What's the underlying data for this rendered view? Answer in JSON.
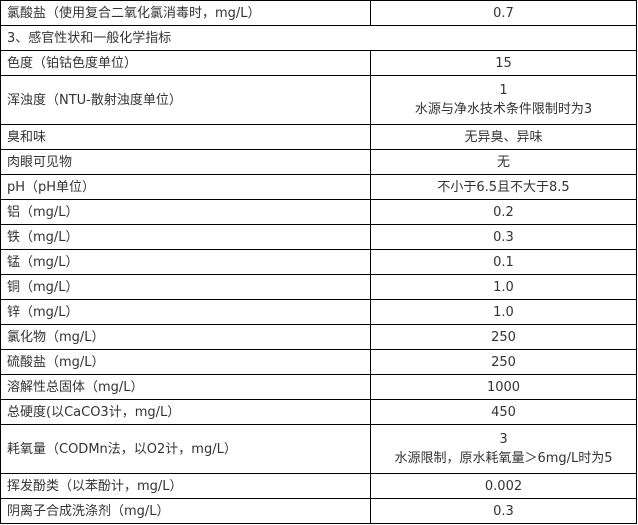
{
  "rows": [
    {
      "name": "氯酸盐（使用复合二氧化氯消毒时，mg/L）",
      "value": "0.7"
    },
    {
      "section": "3、感官性状和一般化学指标"
    },
    {
      "name": "色度（铂钴色度单位）",
      "value": "15"
    },
    {
      "name": "浑浊度（NTU-散射浊度单位）",
      "value": "1",
      "note": "水源与净水技术条件限制时为3"
    },
    {
      "name": "臭和味",
      "value": "无异臭、异味"
    },
    {
      "name": "肉眼可见物",
      "value": "无"
    },
    {
      "name": "pH（pH单位）",
      "value": "不小于6.5且不大于8.5"
    },
    {
      "name": "铝（mg/L）",
      "value": "0.2"
    },
    {
      "name": "铁（mg/L）",
      "value": "0.3"
    },
    {
      "name": "锰（mg/L）",
      "value": "0.1"
    },
    {
      "name": "铜（mg/L）",
      "value": "1.0"
    },
    {
      "name": "锌（mg/L）",
      "value": "1.0"
    },
    {
      "name": "氯化物（mg/L）",
      "value": "250"
    },
    {
      "name": "硫酸盐（mg/L）",
      "value": "250"
    },
    {
      "name": "溶解性总固体（mg/L）",
      "value": "1000"
    },
    {
      "name": "总硬度(以CaCO3计，mg/L）",
      "value": "450"
    },
    {
      "name": "耗氧量（CODMn法，以O2计，mg/L）",
      "value": "3",
      "note": "水源限制，原水耗氧量＞6mg/L时为5"
    },
    {
      "name": "挥发酚类（以苯酚计，mg/L）",
      "value": "0.002"
    },
    {
      "name": "阴离子合成洗涤剂（mg/L）",
      "value": "0.3"
    }
  ]
}
